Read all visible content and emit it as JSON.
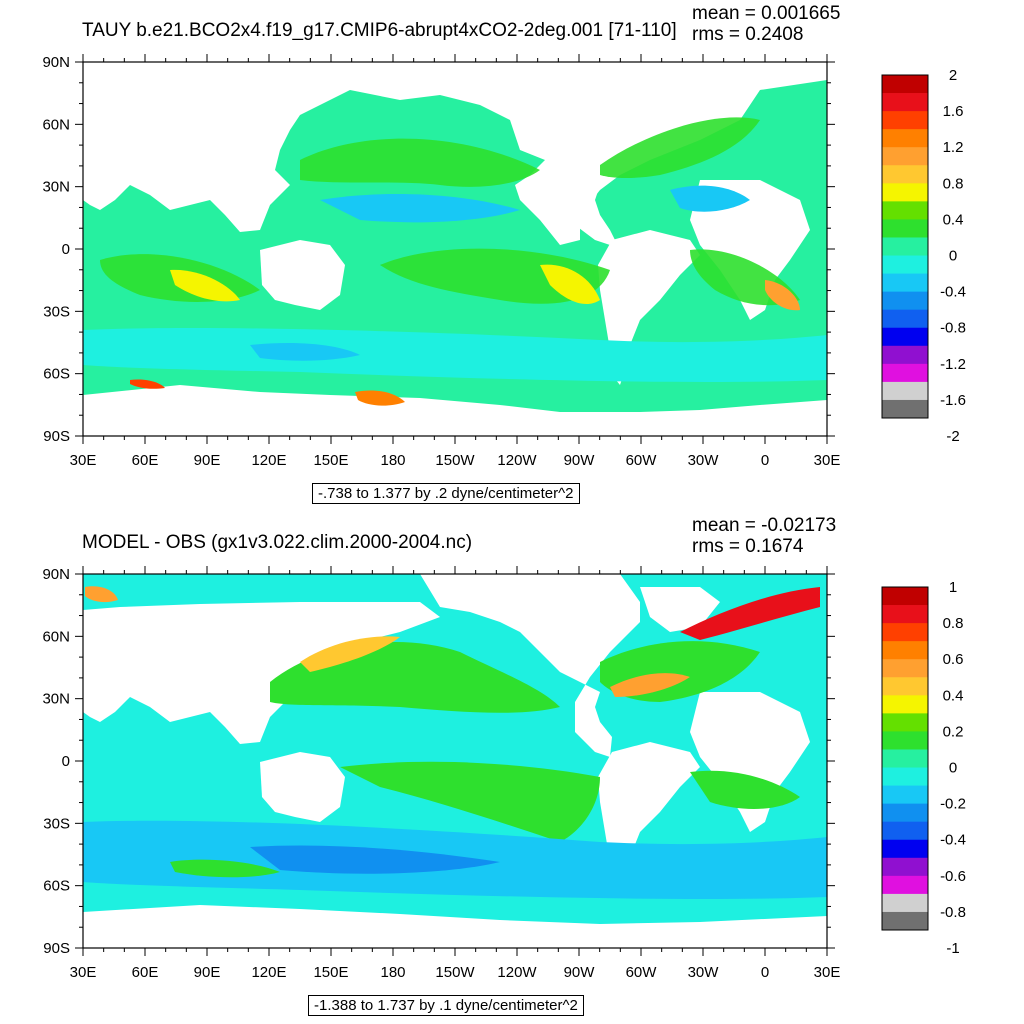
{
  "chart_data": [
    {
      "type": "heatmap",
      "title": "TAUY b.e21.BCO2x4.f19_g17.CMIP6-abrupt4xCO2-2deg.001 [71-110]",
      "mean_text": "mean = 0.001665",
      "rms_text": "rms = 0.2408",
      "subtitle": "-.738 to 1.377 by .2 dyne/centimeter^2",
      "x_ticks": [
        "30E",
        "60E",
        "90E",
        "120E",
        "150E",
        "180",
        "150W",
        "120W",
        "90W",
        "60W",
        "30W",
        "0",
        "30E"
      ],
      "y_ticks": [
        "90N",
        "60N",
        "30N",
        "0",
        "30S",
        "60S",
        "90S"
      ],
      "colorbar_labels": [
        "2",
        "1.6",
        "1.2",
        "0.8",
        "0.4",
        "0",
        "-0.4",
        "-0.8",
        "-1.2",
        "-1.6",
        "-2"
      ],
      "colorbar_colors": [
        "#c00000",
        "#e8101a",
        "#ff4000",
        "#ff8000",
        "#ffa030",
        "#ffc830",
        "#f5f500",
        "#64e000",
        "#2ee02e",
        "#26f0a0",
        "#1ef0e0",
        "#18c8f5",
        "#1090f0",
        "#1060f0",
        "#0000f0",
        "#9010d0",
        "#e010e0",
        "#d0d0d0",
        "#707070"
      ]
    },
    {
      "type": "heatmap",
      "title": "MODEL - OBS (gx1v3.022.clim.2000-2004.nc)",
      "mean_text": "mean = -0.02173",
      "rms_text": "rms = 0.1674",
      "subtitle": "-1.388 to 1.737 by .1 dyne/centimeter^2",
      "x_ticks": [
        "30E",
        "60E",
        "90E",
        "120E",
        "150E",
        "180",
        "150W",
        "120W",
        "90W",
        "60W",
        "30W",
        "0",
        "30E"
      ],
      "y_ticks": [
        "90N",
        "60N",
        "30N",
        "0",
        "30S",
        "60S",
        "90S"
      ],
      "colorbar_labels": [
        "1",
        "0.8",
        "0.6",
        "0.4",
        "0.2",
        "0",
        "-0.2",
        "-0.4",
        "-0.6",
        "-0.8",
        "-1"
      ],
      "colorbar_colors": [
        "#c00000",
        "#e8101a",
        "#ff4000",
        "#ff8000",
        "#ffa030",
        "#ffc830",
        "#f5f500",
        "#64e000",
        "#2ee02e",
        "#26f0a0",
        "#1ef0e0",
        "#18c8f5",
        "#1090f0",
        "#1060f0",
        "#0000f0",
        "#9010d0",
        "#e010e0",
        "#d0d0d0",
        "#707070"
      ]
    }
  ]
}
